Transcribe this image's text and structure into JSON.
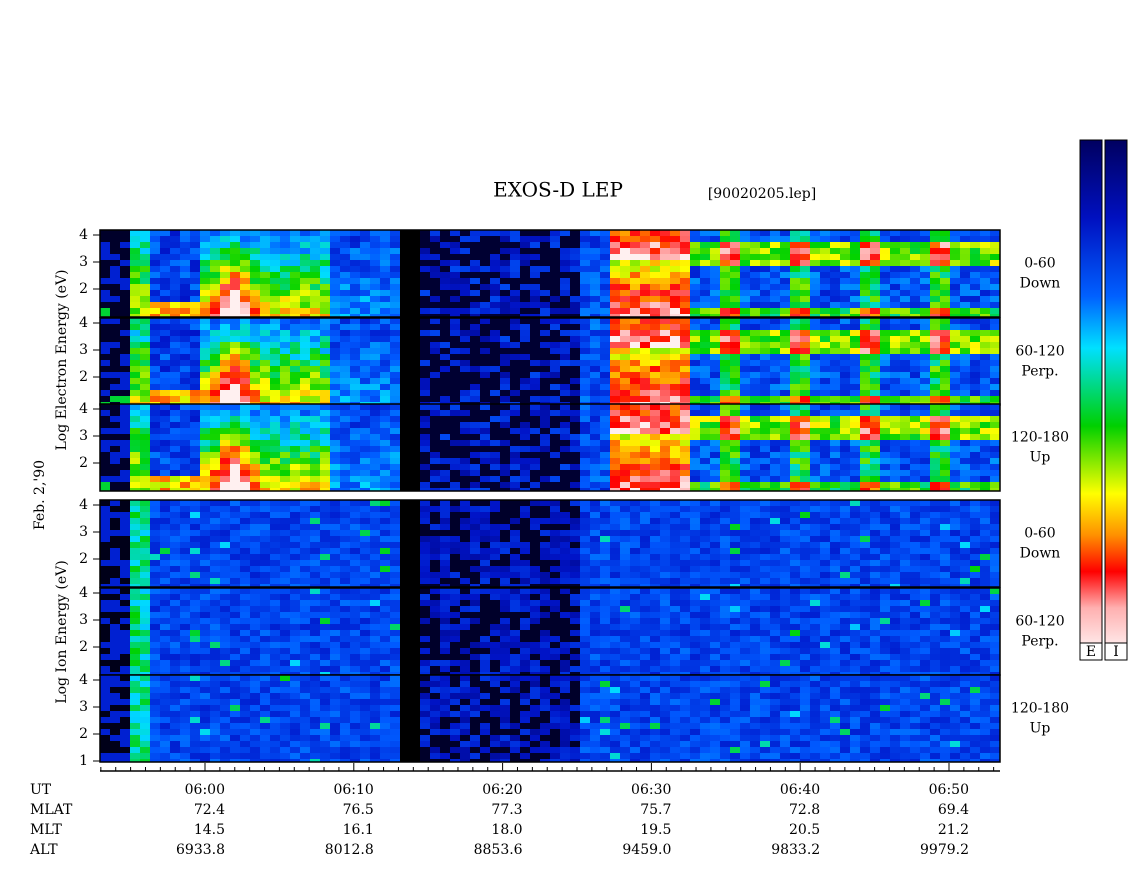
{
  "header": {
    "title": "EXOS-D LEP",
    "file": "[90020205.lep]"
  },
  "electron_axis_label": "Log Electron Energy (eV)",
  "date": "Feb. 2,'90",
  "ion_axis_label": "Log Ion Energy (eV)",
  "panels": [
    {
      "ticks": [
        "4",
        "3",
        "2"
      ],
      "label": [
        "0-60",
        "Down"
      ]
    },
    {
      "ticks": [
        "4",
        "3",
        "2"
      ],
      "label": [
        "60-120",
        "Perp."
      ]
    },
    {
      "ticks": [
        "4",
        "3",
        "2"
      ],
      "label": [
        "120-180",
        "Up"
      ]
    },
    {
      "ticks": [
        "4",
        "3",
        "2"
      ],
      "label": [
        "0-60",
        "Down"
      ]
    },
    {
      "ticks": [
        "4",
        "3",
        "2"
      ],
      "label": [
        "60-120",
        "Perp."
      ]
    },
    {
      "ticks": [
        "4",
        "3",
        "2",
        "1"
      ],
      "label": [
        "120-180",
        "Up"
      ]
    }
  ],
  "time_axis": {
    "rows": [
      {
        "label": "UT",
        "values": [
          "06:00",
          "06:10",
          "06:20",
          "06:30",
          "06:40",
          "06:50"
        ]
      },
      {
        "label": "MLAT",
        "values": [
          "72.4",
          "76.5",
          "77.3",
          "75.7",
          "72.8",
          "69.4"
        ]
      },
      {
        "label": "MLT",
        "values": [
          "14.5",
          "16.1",
          "18.0",
          "19.5",
          "20.5",
          "21.2"
        ]
      },
      {
        "label": "ALT",
        "values": [
          "6933.8",
          "8012.8",
          "8853.6",
          "9459.0",
          "9833.2",
          "9979.2"
        ]
      }
    ]
  },
  "colorbar": {
    "labels": [
      "E",
      "I"
    ]
  }
}
